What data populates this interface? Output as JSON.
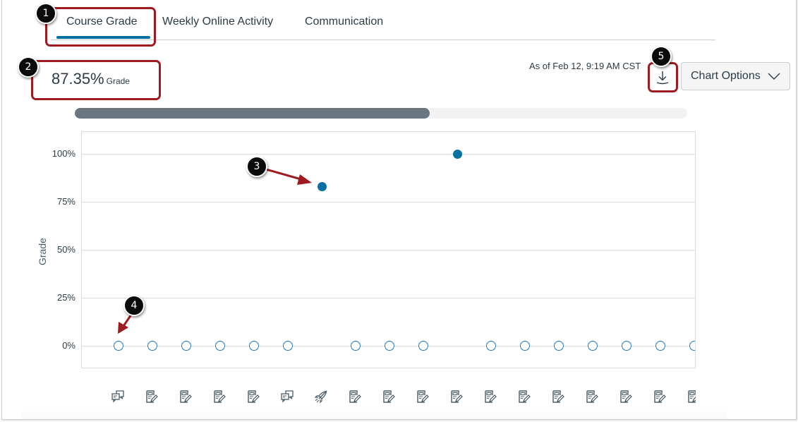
{
  "tabs": [
    {
      "label": "Course Grade",
      "active": true
    },
    {
      "label": "Weekly Online Activity",
      "active": false
    },
    {
      "label": "Communication",
      "active": false
    }
  ],
  "grade": {
    "value": "87.35%",
    "label": "Grade"
  },
  "as_of": "As of Feb 12, 9:19 AM CST",
  "download": {
    "icon": "download-icon"
  },
  "chart_options": {
    "label": "Chart Options",
    "icon": "chevron-down-icon"
  },
  "progress": {
    "percent": 58
  },
  "callouts": [
    "1",
    "2",
    "3",
    "4",
    "5"
  ],
  "colors": {
    "accent": "#0770a3",
    "highlight": "#9e1b21",
    "progress_fill": "#6b7780",
    "text": "#2d3b45"
  },
  "chart_data": {
    "type": "scatter",
    "title": "",
    "xlabel": "",
    "ylabel": "Grade",
    "yticks": [
      "0%",
      "25%",
      "50%",
      "75%",
      "100%"
    ],
    "ylim": [
      0,
      100
    ],
    "grid": true,
    "categories": [
      "discussion",
      "assignment",
      "assignment",
      "assignment",
      "assignment",
      "discussion",
      "quiz",
      "assignment",
      "assignment",
      "assignment",
      "assignment",
      "assignment",
      "assignment",
      "assignment",
      "assignment",
      "assignment",
      "assignment",
      "assignment"
    ],
    "values": [
      0,
      0,
      0,
      0,
      0,
      0,
      83,
      0,
      0,
      0,
      100,
      0,
      0,
      0,
      0,
      0,
      0,
      0
    ],
    "submitted": [
      false,
      false,
      false,
      false,
      false,
      false,
      true,
      false,
      false,
      false,
      true,
      false,
      false,
      false,
      false,
      false,
      false,
      false
    ]
  }
}
